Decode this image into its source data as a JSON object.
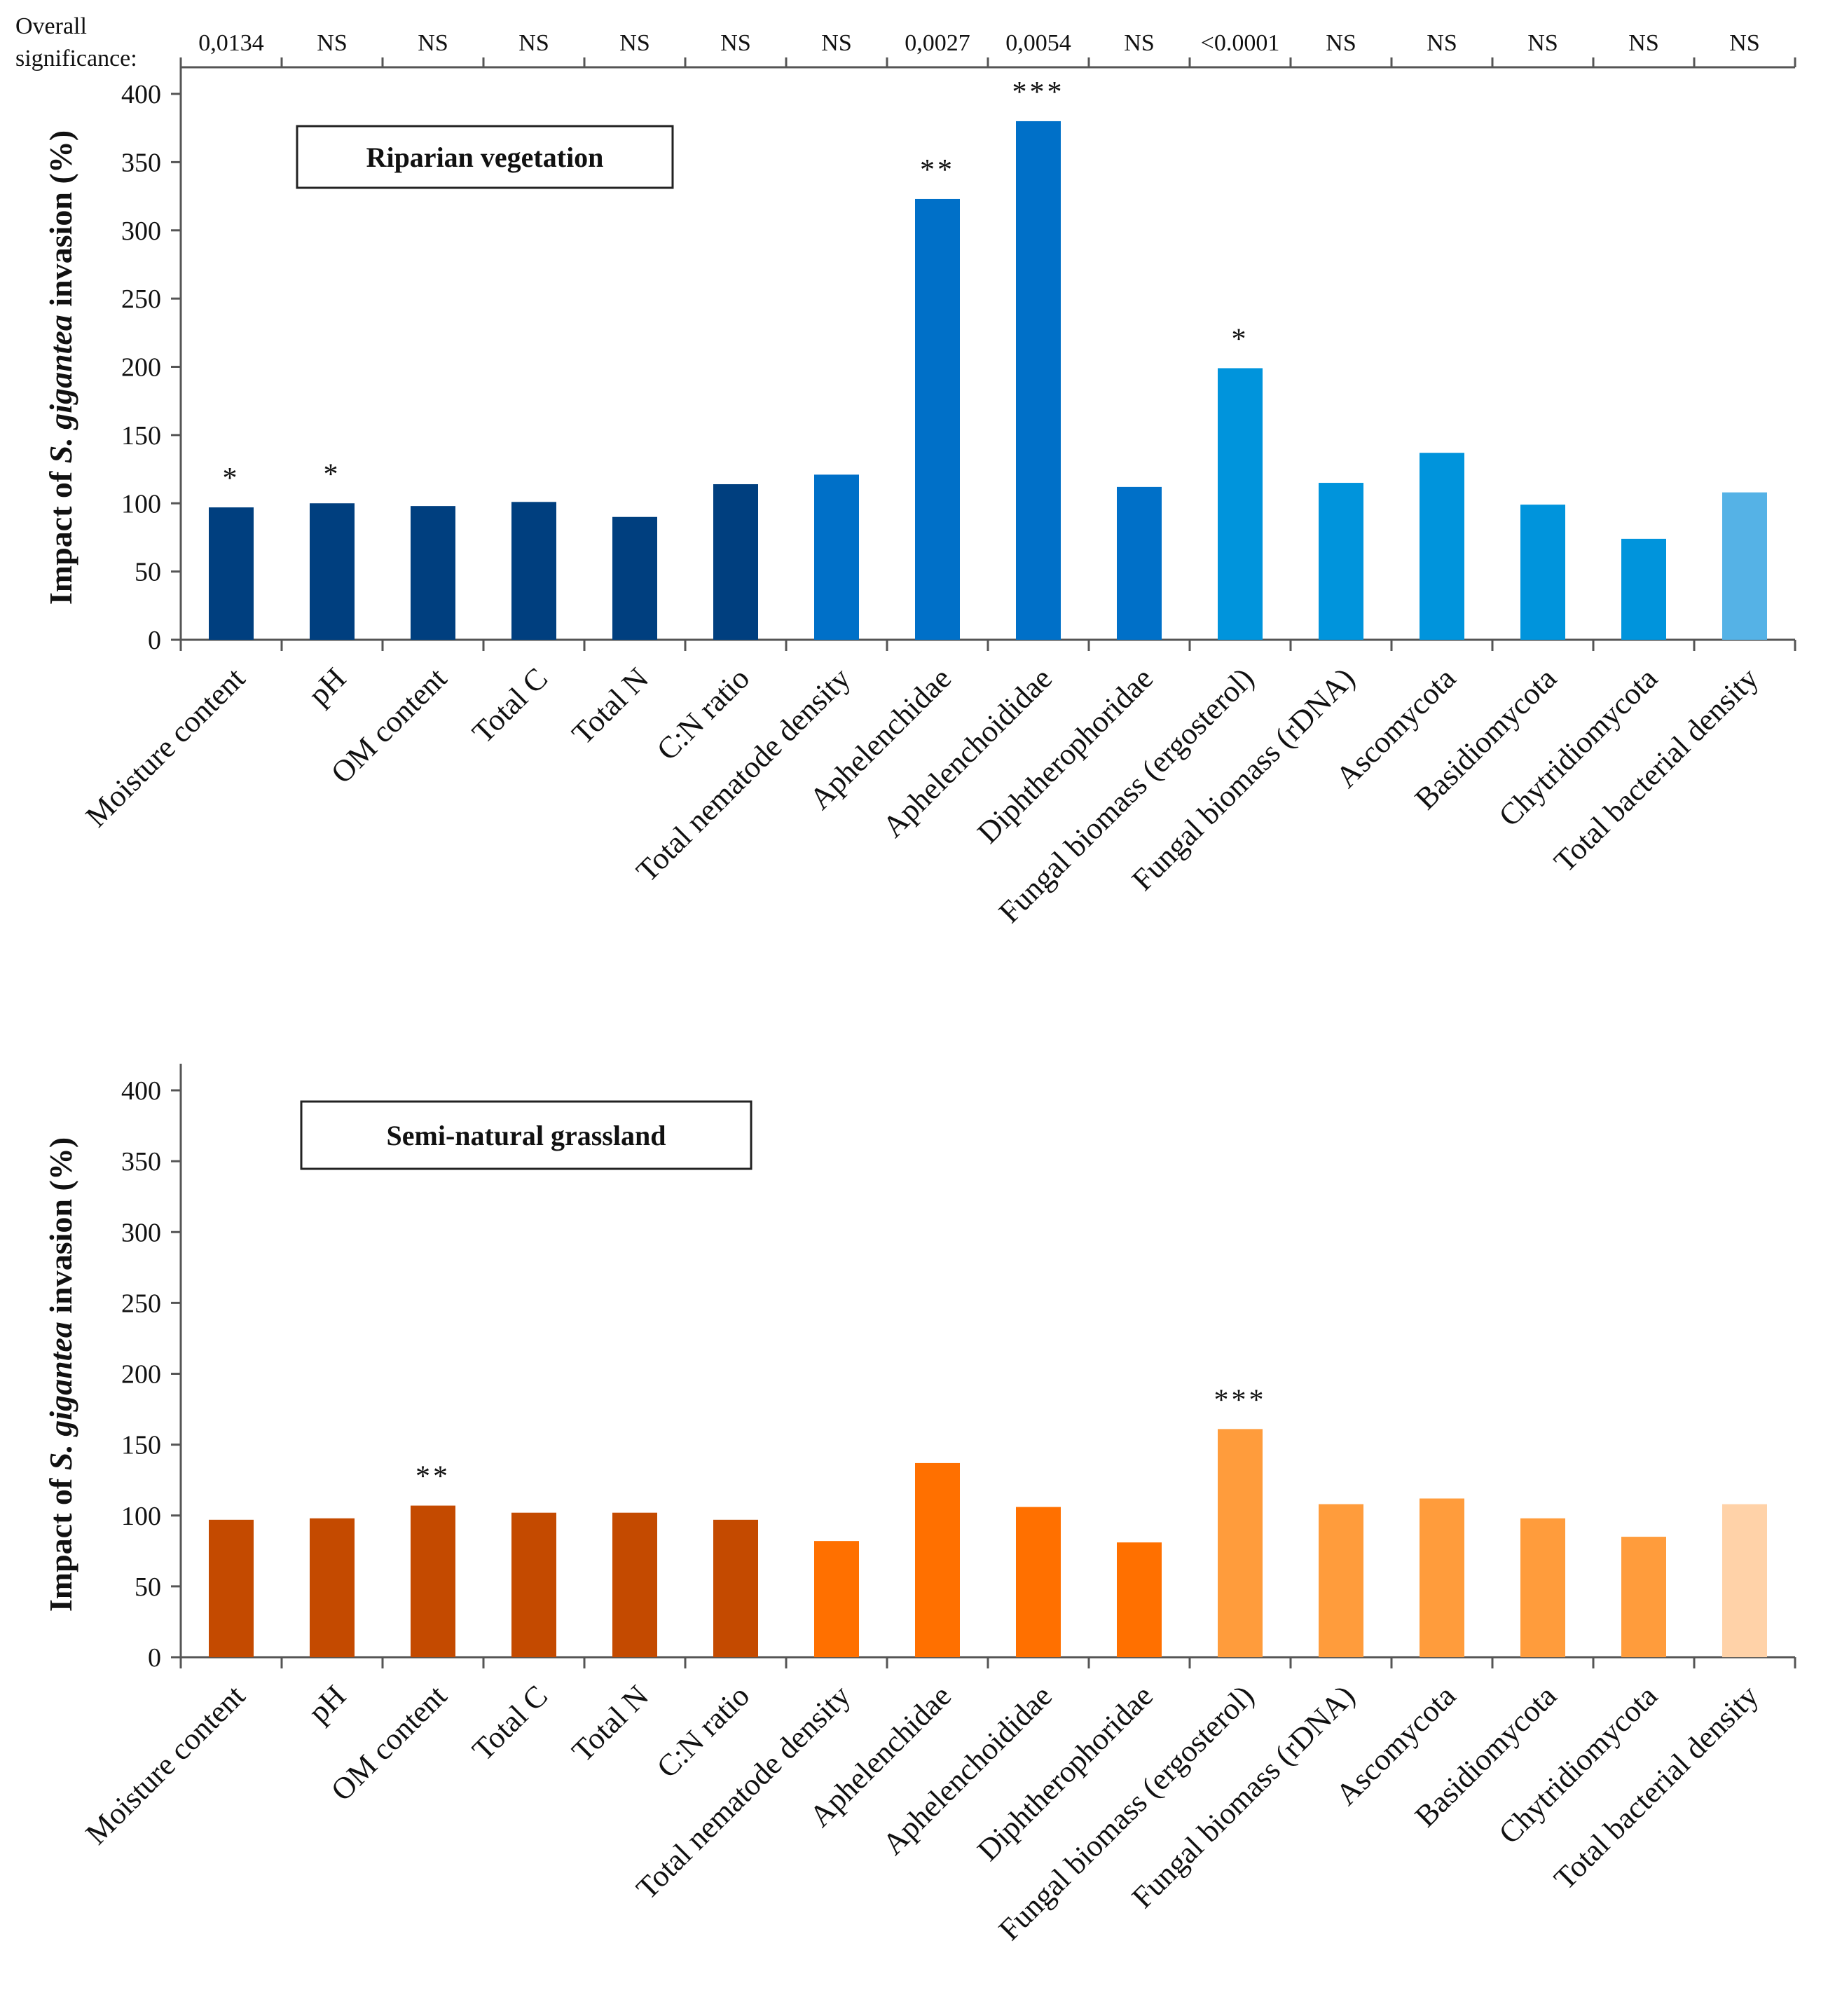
{
  "overall_significance": {
    "label_line1": "Overall",
    "label_line2": "significance:",
    "values": [
      "0,0134",
      "NS",
      "NS",
      "NS",
      "NS",
      "NS",
      "NS",
      "0,0027",
      "0,0054",
      "NS",
      "<0.0001",
      "NS",
      "NS",
      "NS",
      "NS",
      "NS"
    ]
  },
  "chart_data": [
    {
      "type": "bar",
      "title": "Riparian vegetation",
      "ylabel": {
        "prefix": "Impact of ",
        "italic": "S. gigantea",
        "suffix": " invasion (%)"
      },
      "ylim": [
        0,
        400
      ],
      "yticks": [
        0,
        50,
        100,
        150,
        200,
        250,
        300,
        350,
        400
      ],
      "categories": [
        "Moisture content",
        "pH",
        "OM content",
        "Total C",
        "Total N",
        "C:N ratio",
        "Total nematode density",
        "Aphelenchidae",
        "Aphelenchoididae",
        "Diphtherophoridae",
        "Fungal biomass (ergosterol)",
        "Fungal biomass (rDNA)",
        "Ascomycota",
        "Basidiomycota",
        "Chytridiomycota",
        "Total bacterial density"
      ],
      "values": [
        97,
        100,
        98,
        101,
        90,
        114,
        121,
        323,
        380,
        112,
        199,
        115,
        137,
        99,
        74,
        108
      ],
      "significance": [
        "*",
        "*",
        "",
        "",
        "",
        "",
        "",
        "**",
        "***",
        "",
        "*",
        "",
        "",
        "",
        "",
        ""
      ],
      "colors": [
        "#003f7f",
        "#003f7f",
        "#003f7f",
        "#003f7f",
        "#003f7f",
        "#003f7f",
        "#0070c8",
        "#0070c8",
        "#0070c8",
        "#0070c8",
        "#0094dc",
        "#0094dc",
        "#0094dc",
        "#0094dc",
        "#0094dc",
        "#55b2e6"
      ]
    },
    {
      "type": "bar",
      "title": "Semi-natural grassland",
      "ylabel": {
        "prefix": "Impact of ",
        "italic": "S. gigantea",
        "suffix": " invasion (%)"
      },
      "ylim": [
        0,
        400
      ],
      "yticks": [
        0,
        50,
        100,
        150,
        200,
        250,
        300,
        350,
        400
      ],
      "categories": [
        "Moisture content",
        "pH",
        "OM content",
        "Total C",
        "Total N",
        "C:N ratio",
        "Total nematode density",
        "Aphelenchidae",
        "Aphelenchoididae",
        "Diphtherophoridae",
        "Fungal biomass (ergosterol)",
        "Fungal biomass (rDNA)",
        "Ascomycota",
        "Basidiomycota",
        "Chytridiomycota",
        "Total bacterial density"
      ],
      "values": [
        97,
        98,
        107,
        102,
        102,
        97,
        82,
        137,
        106,
        81,
        161,
        108,
        112,
        98,
        85,
        108
      ],
      "significance": [
        "",
        "",
        "**",
        "",
        "",
        "",
        "",
        "",
        "",
        "",
        "***",
        "",
        "",
        "",
        "",
        ""
      ],
      "colors": [
        "#c44a00",
        "#c44a00",
        "#c44a00",
        "#c44a00",
        "#c44a00",
        "#c44a00",
        "#ff7000",
        "#ff7000",
        "#ff7000",
        "#ff7000",
        "#ff9c3c",
        "#ff9c3c",
        "#ff9c3c",
        "#ff9c3c",
        "#ff9c3c",
        "#ffd2a8"
      ]
    }
  ]
}
